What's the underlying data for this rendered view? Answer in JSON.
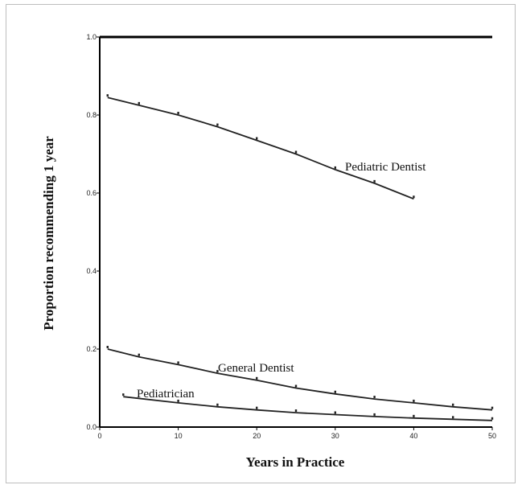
{
  "chart_data": {
    "type": "line",
    "title": "",
    "xlabel": "Years in Practice",
    "ylabel": "Proportion recommending 1 year",
    "xlim": [
      0,
      50
    ],
    "ylim": [
      0.0,
      1.0
    ],
    "x_ticks": [
      "0",
      "10",
      "20",
      "30",
      "40",
      "50"
    ],
    "y_ticks": [
      "0.0",
      "0.2",
      "0.4",
      "0.6",
      "0.8",
      "1.0"
    ],
    "grid": false,
    "legend": "none",
    "series": [
      {
        "name": "Pediatric Dentist",
        "color": "#222222",
        "x": [
          1,
          5,
          10,
          15,
          20,
          25,
          30,
          35,
          40
        ],
        "y": [
          0.845,
          0.825,
          0.8,
          0.77,
          0.735,
          0.7,
          0.66,
          0.625,
          0.585
        ]
      },
      {
        "name": "General Dentist",
        "color": "#222222",
        "x": [
          1,
          5,
          10,
          15,
          20,
          25,
          30,
          35,
          40,
          45,
          50
        ],
        "y": [
          0.2,
          0.18,
          0.16,
          0.138,
          0.12,
          0.1,
          0.085,
          0.072,
          0.062,
          0.052,
          0.044
        ]
      },
      {
        "name": "Pediatrician",
        "color": "#222222",
        "x": [
          3,
          10,
          15,
          20,
          25,
          30,
          35,
          40,
          45,
          50
        ],
        "y": [
          0.078,
          0.062,
          0.052,
          0.044,
          0.037,
          0.032,
          0.027,
          0.023,
          0.02,
          0.017
        ]
      }
    ]
  }
}
